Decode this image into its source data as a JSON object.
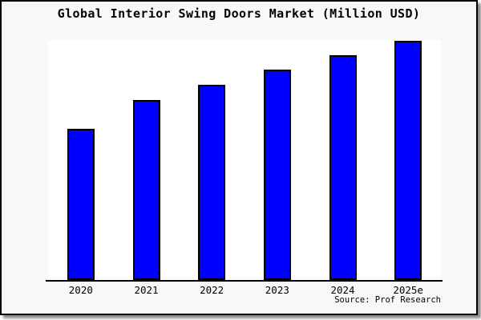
{
  "window": {
    "card_background": "#f8f8f8",
    "plot_background": "#ffffff",
    "frame_color": "#000000"
  },
  "chart_data": {
    "type": "bar",
    "title": "Global Interior Swing Doors Market (Million USD)",
    "categories": [
      "2020",
      "2021",
      "2022",
      "2023",
      "2024",
      "2025e"
    ],
    "values": [
      63.3,
      75.3,
      81.7,
      88,
      94,
      100
    ],
    "value_unit": "relative bar height, percent of 2025e bar (no y-axis labels shown)",
    "ylim": [
      0,
      100.3
    ],
    "xlabel": "",
    "ylabel": "",
    "grid": false,
    "legend": false,
    "bar_color": "#0000ff",
    "bar_border_color": "#000000"
  },
  "footer": {
    "source_label": "Source: Prof Research"
  }
}
